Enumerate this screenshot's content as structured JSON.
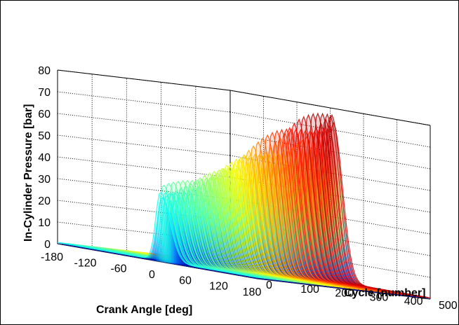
{
  "chart_data": {
    "type": "surface3d",
    "title": "",
    "xlabel": "Crank Angle [deg]",
    "ylabel": "Cycle [number]",
    "zlabel": "In-Cylinder Pressure [bar]",
    "xlim": [
      -180,
      180
    ],
    "ylim": [
      0,
      500
    ],
    "zlim": [
      0,
      80
    ],
    "x_ticks": [
      "-180",
      "-120",
      "-60",
      "0",
      "60",
      "120",
      "180"
    ],
    "y_ticks": [
      "0",
      "100",
      "200",
      "300",
      "400",
      "500"
    ],
    "z_ticks": [
      "0",
      "10",
      "20",
      "30",
      "40",
      "50",
      "60",
      "70",
      "80"
    ],
    "grid": true,
    "colormap": "jet",
    "baseline_pressure_bar": 0.6,
    "peak_crank_angle_deg": 5,
    "peak_pressure_vs_cycle": {
      "cycle": [
        0,
        100,
        200,
        300,
        400,
        500
      ],
      "peak_pressure_bar": [
        32,
        38,
        48,
        58,
        68,
        76
      ]
    }
  }
}
